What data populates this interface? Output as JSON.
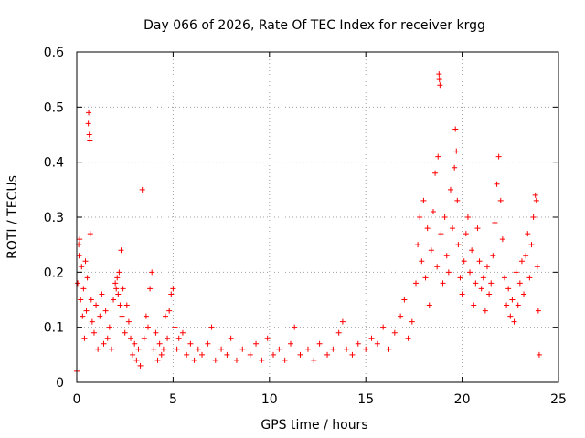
{
  "chart_data": {
    "type": "scatter",
    "title": "Day 066 of 2026, Rate Of TEC Index for receiver krgg",
    "xlabel": "GPS time / hours",
    "ylabel": "ROTI / TECUs",
    "xlim": [
      0,
      25
    ],
    "ylim": [
      0,
      0.6
    ],
    "xticks": [
      0,
      5,
      10,
      15,
      20,
      25
    ],
    "xtick_labels": [
      "0",
      "5",
      "10",
      "15",
      "20",
      "25"
    ],
    "yticks": [
      0,
      0.1,
      0.2,
      0.3,
      0.4,
      0.5,
      0.6
    ],
    "ytick_labels": [
      "0",
      "0.1",
      "0.2",
      "0.3",
      "0.4",
      "0.5",
      "0.6"
    ],
    "grid": true,
    "marker": "plus",
    "marker_color": "#ff0000",
    "series": [
      {
        "name": "ROTI",
        "points": [
          [
            0.0,
            0.02
          ],
          [
            0.05,
            0.18
          ],
          [
            0.1,
            0.25
          ],
          [
            0.12,
            0.23
          ],
          [
            0.15,
            0.26
          ],
          [
            0.2,
            0.15
          ],
          [
            0.25,
            0.21
          ],
          [
            0.3,
            0.12
          ],
          [
            0.35,
            0.17
          ],
          [
            0.4,
            0.08
          ],
          [
            0.45,
            0.22
          ],
          [
            0.5,
            0.13
          ],
          [
            0.55,
            0.19
          ],
          [
            0.6,
            0.47
          ],
          [
            0.62,
            0.49
          ],
          [
            0.65,
            0.45
          ],
          [
            0.68,
            0.44
          ],
          [
            0.7,
            0.27
          ],
          [
            0.75,
            0.15
          ],
          [
            0.8,
            0.11
          ],
          [
            0.9,
            0.09
          ],
          [
            1.0,
            0.14
          ],
          [
            1.1,
            0.06
          ],
          [
            1.2,
            0.12
          ],
          [
            1.3,
            0.16
          ],
          [
            1.4,
            0.07
          ],
          [
            1.5,
            0.13
          ],
          [
            1.6,
            0.08
          ],
          [
            1.7,
            0.1
          ],
          [
            1.8,
            0.06
          ],
          [
            1.9,
            0.15
          ],
          [
            2.0,
            0.18
          ],
          [
            2.05,
            0.17
          ],
          [
            2.1,
            0.19
          ],
          [
            2.15,
            0.16
          ],
          [
            2.2,
            0.2
          ],
          [
            2.25,
            0.14
          ],
          [
            2.3,
            0.24
          ],
          [
            2.35,
            0.12
          ],
          [
            2.4,
            0.17
          ],
          [
            2.5,
            0.09
          ],
          [
            2.6,
            0.14
          ],
          [
            2.7,
            0.11
          ],
          [
            2.8,
            0.08
          ],
          [
            2.9,
            0.05
          ],
          [
            3.0,
            0.07
          ],
          [
            3.1,
            0.04
          ],
          [
            3.2,
            0.06
          ],
          [
            3.3,
            0.03
          ],
          [
            3.4,
            0.35
          ],
          [
            3.5,
            0.08
          ],
          [
            3.6,
            0.12
          ],
          [
            3.7,
            0.1
          ],
          [
            3.8,
            0.17
          ],
          [
            3.9,
            0.2
          ],
          [
            4.0,
            0.06
          ],
          [
            4.1,
            0.09
          ],
          [
            4.2,
            0.04
          ],
          [
            4.3,
            0.07
          ],
          [
            4.4,
            0.05
          ],
          [
            4.5,
            0.06
          ],
          [
            4.6,
            0.12
          ],
          [
            4.7,
            0.08
          ],
          [
            4.8,
            0.13
          ],
          [
            4.9,
            0.16
          ],
          [
            5.0,
            0.17
          ],
          [
            5.1,
            0.1
          ],
          [
            5.2,
            0.06
          ],
          [
            5.3,
            0.08
          ],
          [
            5.5,
            0.09
          ],
          [
            5.7,
            0.05
          ],
          [
            5.9,
            0.07
          ],
          [
            6.1,
            0.04
          ],
          [
            6.3,
            0.06
          ],
          [
            6.5,
            0.05
          ],
          [
            6.8,
            0.07
          ],
          [
            7.0,
            0.1
          ],
          [
            7.2,
            0.04
          ],
          [
            7.5,
            0.06
          ],
          [
            7.8,
            0.05
          ],
          [
            8.0,
            0.08
          ],
          [
            8.3,
            0.04
          ],
          [
            8.6,
            0.06
          ],
          [
            9.0,
            0.05
          ],
          [
            9.3,
            0.07
          ],
          [
            9.6,
            0.04
          ],
          [
            9.9,
            0.08
          ],
          [
            10.2,
            0.05
          ],
          [
            10.5,
            0.06
          ],
          [
            10.8,
            0.04
          ],
          [
            11.1,
            0.07
          ],
          [
            11.3,
            0.1
          ],
          [
            11.6,
            0.05
          ],
          [
            12.0,
            0.06
          ],
          [
            12.3,
            0.04
          ],
          [
            12.6,
            0.07
          ],
          [
            13.0,
            0.05
          ],
          [
            13.3,
            0.06
          ],
          [
            13.6,
            0.09
          ],
          [
            13.8,
            0.11
          ],
          [
            14.0,
            0.06
          ],
          [
            14.3,
            0.05
          ],
          [
            14.6,
            0.07
          ],
          [
            15.0,
            0.06
          ],
          [
            15.3,
            0.08
          ],
          [
            15.6,
            0.07
          ],
          [
            15.9,
            0.1
          ],
          [
            16.2,
            0.06
          ],
          [
            16.5,
            0.09
          ],
          [
            16.8,
            0.12
          ],
          [
            17.0,
            0.15
          ],
          [
            17.2,
            0.08
          ],
          [
            17.4,
            0.11
          ],
          [
            17.6,
            0.18
          ],
          [
            17.7,
            0.25
          ],
          [
            17.8,
            0.3
          ],
          [
            17.9,
            0.22
          ],
          [
            18.0,
            0.33
          ],
          [
            18.1,
            0.19
          ],
          [
            18.2,
            0.28
          ],
          [
            18.3,
            0.14
          ],
          [
            18.4,
            0.24
          ],
          [
            18.5,
            0.31
          ],
          [
            18.6,
            0.38
          ],
          [
            18.7,
            0.21
          ],
          [
            18.75,
            0.41
          ],
          [
            18.8,
            0.56
          ],
          [
            18.82,
            0.55
          ],
          [
            18.85,
            0.54
          ],
          [
            18.9,
            0.27
          ],
          [
            19.0,
            0.18
          ],
          [
            19.1,
            0.3
          ],
          [
            19.2,
            0.23
          ],
          [
            19.3,
            0.2
          ],
          [
            19.4,
            0.35
          ],
          [
            19.5,
            0.28
          ],
          [
            19.6,
            0.39
          ],
          [
            19.65,
            0.46
          ],
          [
            19.7,
            0.42
          ],
          [
            19.75,
            0.33
          ],
          [
            19.8,
            0.25
          ],
          [
            19.9,
            0.19
          ],
          [
            20.0,
            0.16
          ],
          [
            20.1,
            0.22
          ],
          [
            20.2,
            0.27
          ],
          [
            20.3,
            0.3
          ],
          [
            20.4,
            0.2
          ],
          [
            20.5,
            0.24
          ],
          [
            20.6,
            0.14
          ],
          [
            20.7,
            0.18
          ],
          [
            20.8,
            0.28
          ],
          [
            20.9,
            0.22
          ],
          [
            21.0,
            0.17
          ],
          [
            21.1,
            0.19
          ],
          [
            21.2,
            0.13
          ],
          [
            21.3,
            0.21
          ],
          [
            21.4,
            0.16
          ],
          [
            21.5,
            0.18
          ],
          [
            21.6,
            0.23
          ],
          [
            21.7,
            0.29
          ],
          [
            21.8,
            0.36
          ],
          [
            21.9,
            0.41
          ],
          [
            22.0,
            0.33
          ],
          [
            22.1,
            0.26
          ],
          [
            22.2,
            0.19
          ],
          [
            22.3,
            0.14
          ],
          [
            22.4,
            0.17
          ],
          [
            22.5,
            0.12
          ],
          [
            22.6,
            0.15
          ],
          [
            22.7,
            0.11
          ],
          [
            22.8,
            0.2
          ],
          [
            22.9,
            0.14
          ],
          [
            23.0,
            0.18
          ],
          [
            23.1,
            0.22
          ],
          [
            23.2,
            0.16
          ],
          [
            23.3,
            0.23
          ],
          [
            23.4,
            0.27
          ],
          [
            23.5,
            0.19
          ],
          [
            23.6,
            0.25
          ],
          [
            23.7,
            0.3
          ],
          [
            23.8,
            0.34
          ],
          [
            23.85,
            0.33
          ],
          [
            23.9,
            0.21
          ],
          [
            23.95,
            0.13
          ],
          [
            24.0,
            0.05
          ]
        ]
      }
    ]
  }
}
